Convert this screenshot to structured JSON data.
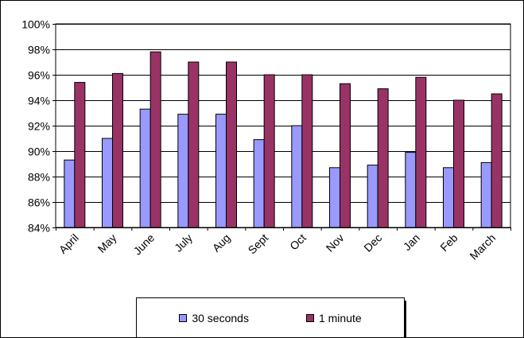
{
  "chart_data": {
    "type": "bar",
    "categories": [
      "April",
      "May",
      "June",
      "July",
      "Aug",
      "Sept",
      "Oct",
      "Nov",
      "Dec",
      "Jan",
      "Feb",
      "March"
    ],
    "series": [
      {
        "name": "30 seconds",
        "color": "#9999ff",
        "values": [
          89.3,
          91.0,
          93.3,
          92.9,
          92.9,
          90.9,
          92.0,
          88.7,
          88.9,
          89.9,
          88.7,
          89.1
        ]
      },
      {
        "name": "1 minute",
        "color": "#993366",
        "values": [
          95.4,
          96.1,
          97.8,
          97.0,
          97.0,
          96.0,
          96.0,
          95.3,
          94.9,
          95.8,
          94.0,
          94.5
        ]
      }
    ],
    "ylim": [
      84,
      100
    ],
    "yticks": [
      "84%",
      "86%",
      "88%",
      "90%",
      "92%",
      "94%",
      "96%",
      "98%",
      "100%"
    ],
    "title": "",
    "xlabel": "",
    "ylabel": "",
    "grid": true,
    "legend": "bottom"
  }
}
